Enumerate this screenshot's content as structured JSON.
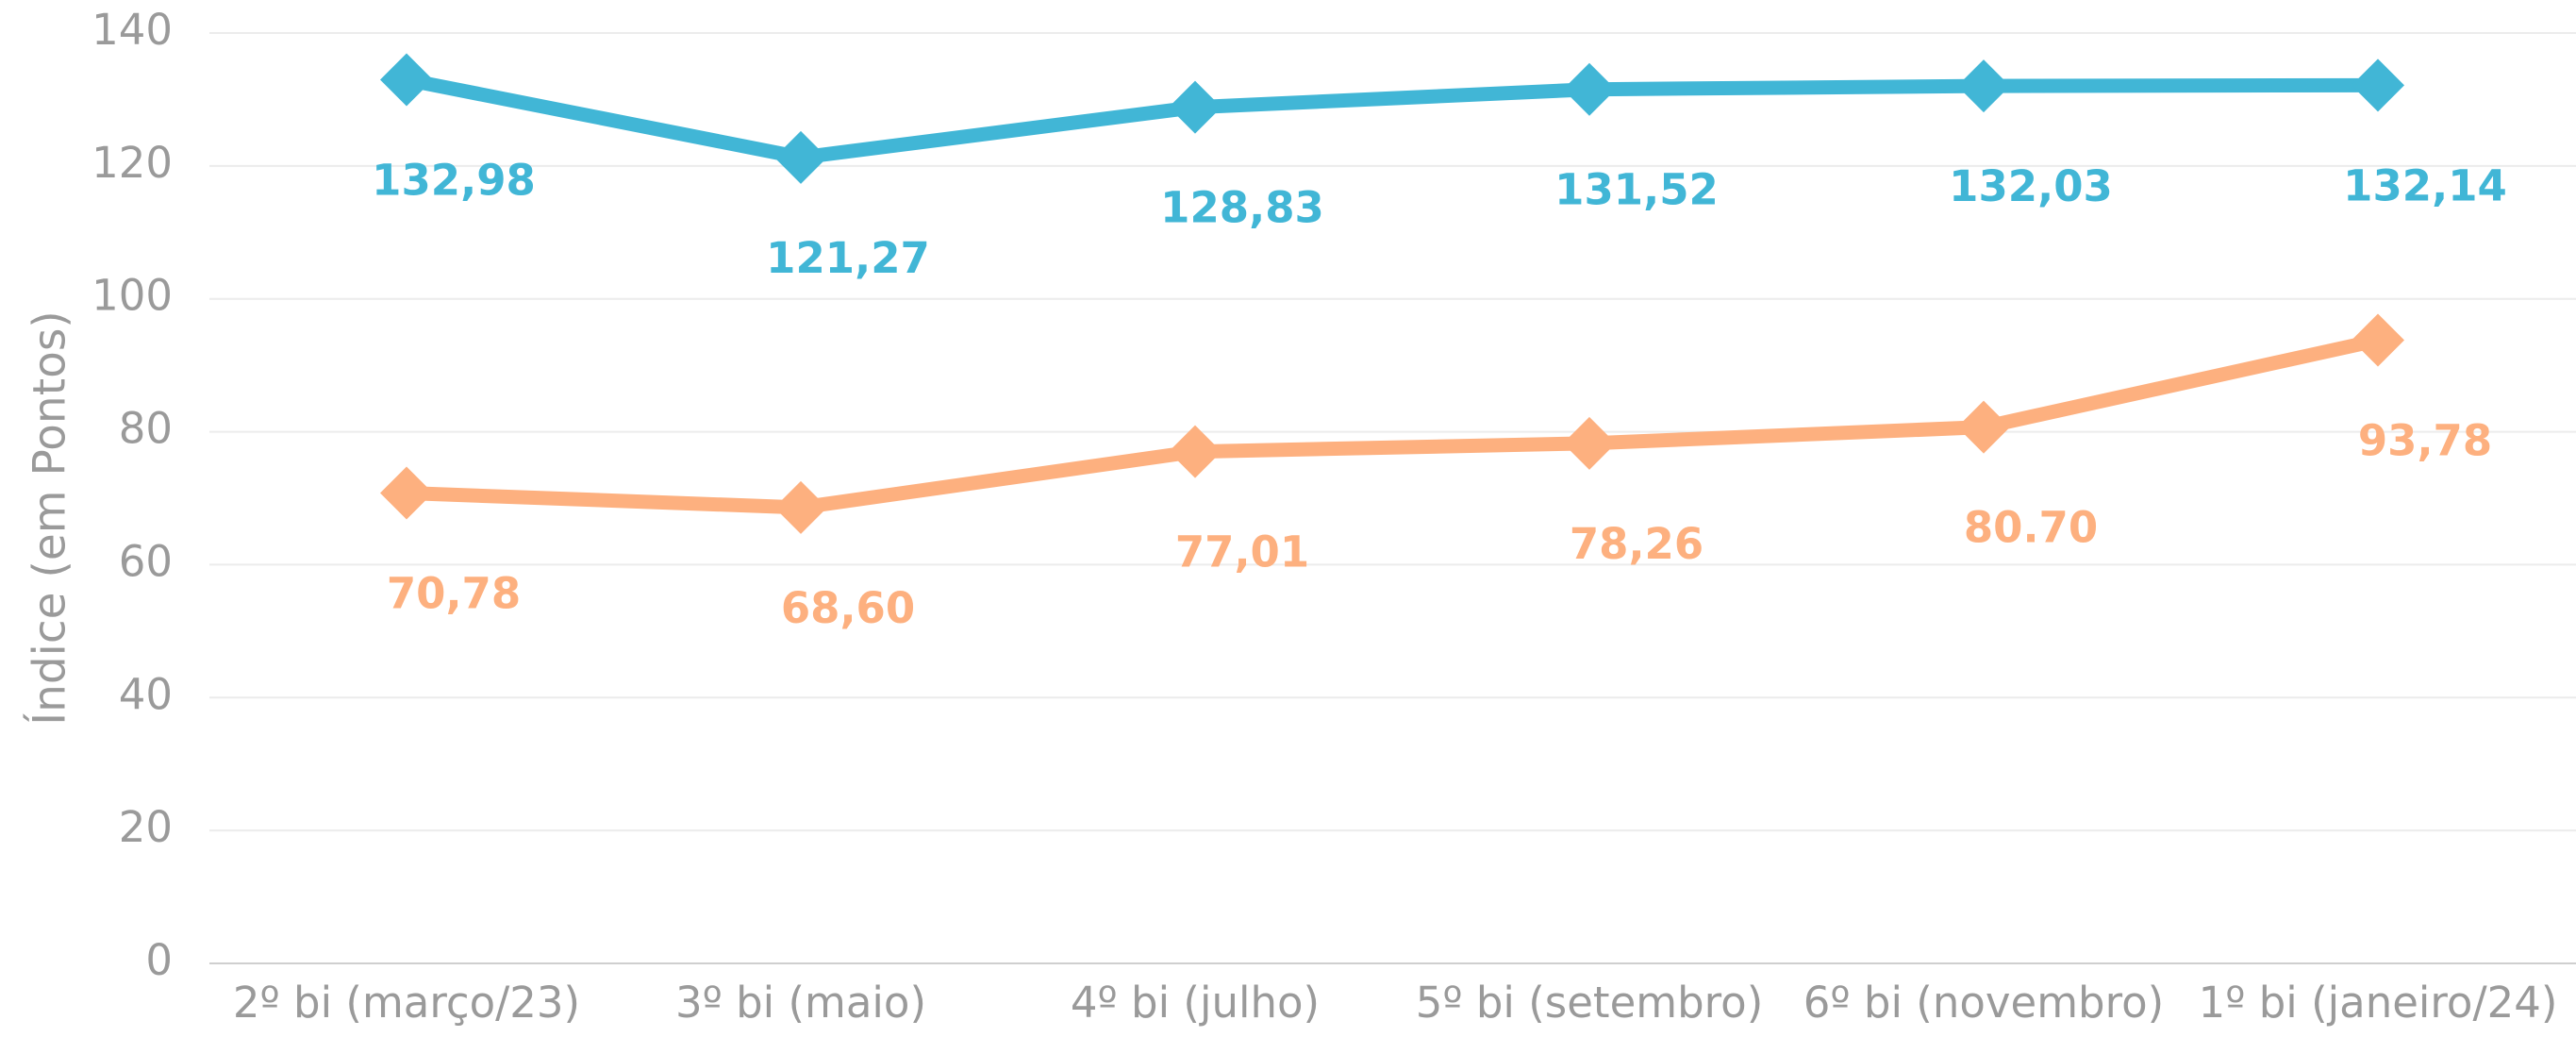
{
  "chart_data": {
    "type": "line",
    "y_label": "Índice (em Pontos)",
    "categories": [
      "2º bi (março/23)",
      "3º bi (maio)",
      "4º bi (julho)",
      "5º bi (setembro)",
      "6º bi (novembro)",
      "1º bi (janeiro/24)"
    ],
    "series": [
      {
        "color": "#41b6d6",
        "values": [
          132.98,
          121.27,
          128.83,
          131.52,
          132.03,
          132.14
        ],
        "value_labels": [
          "132,98",
          "121,27",
          "128,83",
          "131,52",
          "132,03",
          "132,14"
        ]
      },
      {
        "color": "#fdb07f",
        "values": [
          70.78,
          68.6,
          77.01,
          78.26,
          80.7,
          93.78
        ],
        "value_labels": [
          "70,78",
          "68,60",
          "77,01",
          "78,26",
          "80.70",
          "93,78"
        ]
      }
    ],
    "ylim": [
      0,
      140
    ],
    "yticks": [
      0,
      20,
      40,
      60,
      80,
      100,
      120,
      140
    ],
    "grid": true
  }
}
